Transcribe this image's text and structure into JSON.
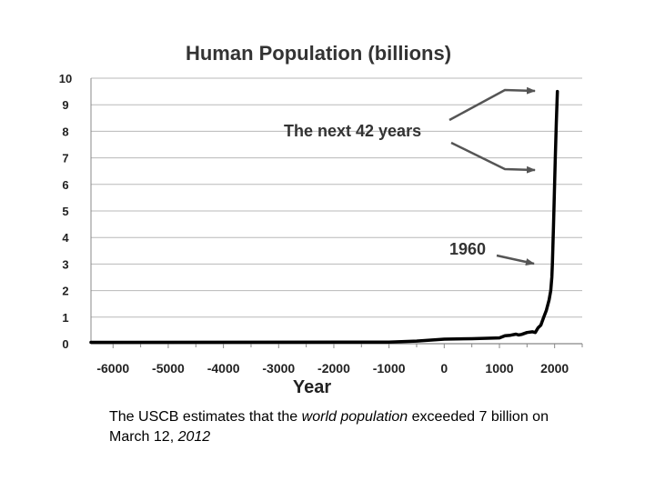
{
  "chart_data": {
    "type": "line",
    "title": "Human Population (billions)",
    "xlabel": "Year",
    "ylabel": "",
    "xlim": [
      -6400,
      2500
    ],
    "ylim": [
      0,
      10
    ],
    "grid": true,
    "x_ticks": [
      -6000,
      -5000,
      -4000,
      -3000,
      -2000,
      -1000,
      0,
      1000,
      2000
    ],
    "x_tick_labels": [
      "-6000",
      "-5000",
      "-4000",
      "-3000",
      "-2000",
      "-1000",
      "0",
      "1000",
      "2000"
    ],
    "y_ticks": [
      0,
      1,
      2,
      3,
      4,
      5,
      6,
      7,
      8,
      9,
      10
    ],
    "y_tick_labels": [
      "0",
      "1",
      "2",
      "3",
      "4",
      "5",
      "6",
      "7",
      "8",
      "9",
      "10"
    ],
    "series": [
      {
        "x": [
          -6400,
          -1000,
          -500,
          0,
          500,
          1000,
          1100,
          1200,
          1300,
          1350,
          1400,
          1500,
          1600,
          1650,
          1700,
          1750,
          1800,
          1850,
          1900,
          1930,
          1950,
          1960,
          1970,
          1980,
          1990,
          2000,
          2012,
          2030,
          2050
        ],
        "y": [
          0.05,
          0.06,
          0.1,
          0.17,
          0.19,
          0.22,
          0.3,
          0.32,
          0.36,
          0.33,
          0.35,
          0.42,
          0.45,
          0.42,
          0.6,
          0.7,
          0.98,
          1.26,
          1.65,
          2.0,
          2.5,
          3.0,
          3.7,
          4.4,
          5.3,
          6.1,
          7.0,
          8.3,
          9.5
        ]
      }
    ],
    "annotations": {
      "next_years": "The next 42 years",
      "year_1960": "1960"
    }
  },
  "caption": {
    "before": "The USCB estimates that the ",
    "italic1": "world population",
    "middle": " exceeded 7 billion on March 12, ",
    "italic2": "2012"
  }
}
